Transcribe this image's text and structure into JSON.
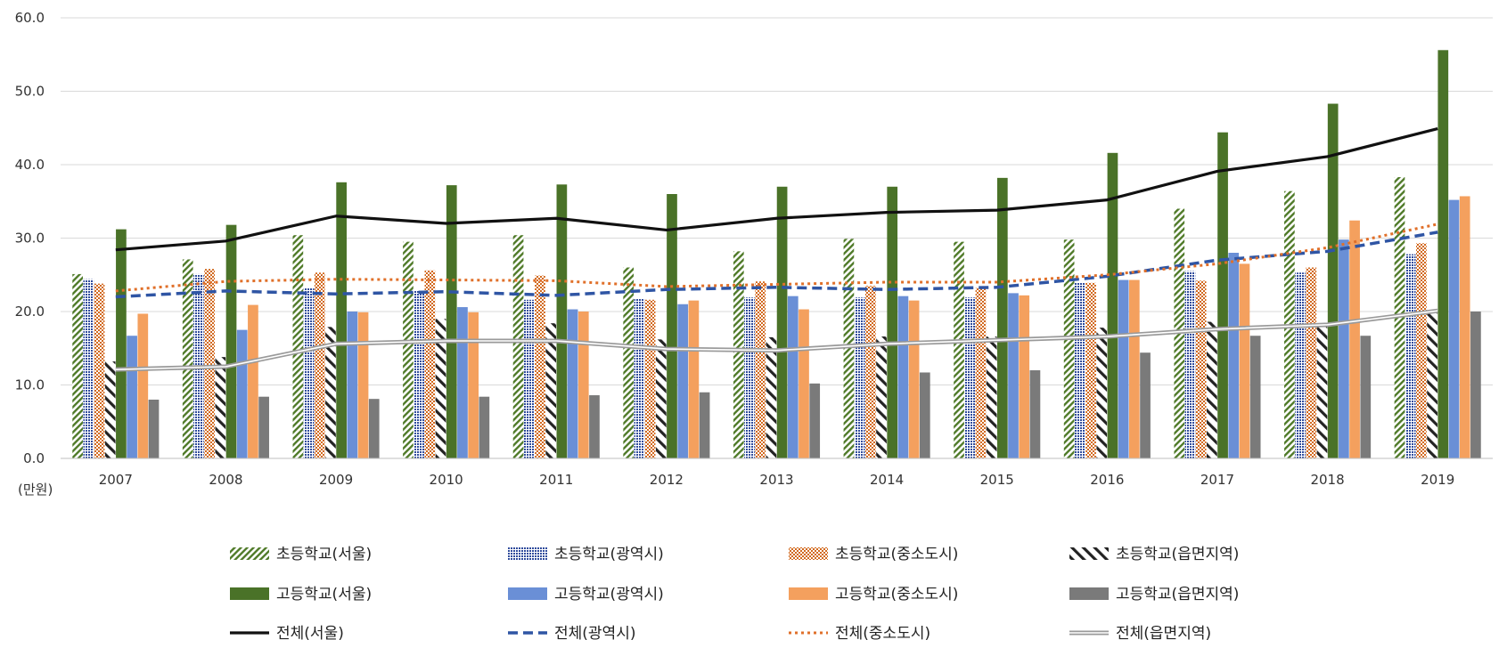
{
  "chart_data": {
    "type": "bar",
    "title": "",
    "xlabel": "",
    "ylabel": "",
    "unit_label": "(만원)",
    "ylim": [
      0,
      60
    ],
    "yticks": [
      0,
      10,
      20,
      30,
      40,
      50,
      60
    ],
    "ytick_labels": [
      "0.0",
      "10.0",
      "20.0",
      "30.0",
      "40.0",
      "50.0",
      "60.0"
    ],
    "grid": true,
    "legend_position": "bottom",
    "categories": [
      "2007",
      "2008",
      "2009",
      "2010",
      "2011",
      "2012",
      "2013",
      "2014",
      "2015",
      "2016",
      "2017",
      "2018",
      "2019"
    ],
    "bar_series": [
      {
        "name": "초등학교(서울)",
        "style": "diag-green",
        "color": "#4f7a28",
        "values": [
          25.1,
          27.1,
          30.4,
          29.5,
          30.4,
          26.0,
          28.2,
          29.9,
          29.5,
          29.8,
          34.0,
          36.4,
          38.3
        ]
      },
      {
        "name": "초등학교(광역시)",
        "style": "dots-blue",
        "color": "#2f4b9c",
        "values": [
          24.4,
          25.1,
          23.2,
          22.8,
          21.6,
          21.8,
          21.9,
          21.9,
          21.9,
          23.9,
          25.5,
          25.3,
          27.8
        ]
      },
      {
        "name": "초등학교(중소도시)",
        "style": "check-orange",
        "color": "#d2691e",
        "values": [
          23.8,
          25.8,
          25.3,
          25.6,
          24.9,
          21.6,
          24.1,
          23.5,
          23.2,
          23.9,
          24.2,
          26.0,
          29.3
        ]
      },
      {
        "name": "초등학교(읍면지역)",
        "style": "wide-diag-black",
        "color": "#222222",
        "values": [
          13.2,
          13.8,
          17.9,
          19.0,
          18.4,
          16.2,
          16.5,
          16.6,
          16.6,
          17.8,
          18.6,
          18.1,
          19.8
        ]
      },
      {
        "name": "고등학교(서울)",
        "style": "solid",
        "color": "#4a7228",
        "values": [
          31.2,
          31.8,
          37.6,
          37.2,
          37.3,
          36.0,
          37.0,
          37.0,
          38.2,
          41.6,
          44.4,
          48.3,
          55.6
        ]
      },
      {
        "name": "고등학교(광역시)",
        "style": "solid",
        "color": "#6a8fd6",
        "values": [
          16.7,
          17.5,
          20.0,
          20.6,
          20.3,
          21.0,
          22.1,
          22.1,
          22.5,
          24.3,
          28.0,
          29.8,
          35.2
        ]
      },
      {
        "name": "고등학교(중소도시)",
        "style": "solid",
        "color": "#f4a05e",
        "values": [
          19.7,
          20.9,
          19.9,
          19.9,
          20.0,
          21.5,
          20.3,
          21.5,
          22.2,
          24.3,
          26.5,
          32.4,
          35.7
        ]
      },
      {
        "name": "고등학교(읍면지역)",
        "style": "solid",
        "color": "#7a7a7a",
        "values": [
          8.0,
          8.4,
          8.1,
          8.4,
          8.6,
          9.0,
          10.2,
          11.7,
          12.0,
          14.4,
          16.7,
          16.7,
          20.0
        ]
      }
    ],
    "line_series": [
      {
        "name": "전체(서울)",
        "style": "solid-black",
        "color": "#111111",
        "values": [
          28.4,
          29.6,
          33.0,
          32.0,
          32.7,
          31.1,
          32.7,
          33.5,
          33.8,
          35.2,
          39.1,
          41.1,
          44.9
        ]
      },
      {
        "name": "전체(광역시)",
        "style": "dashed-blue",
        "color": "#2f55a4",
        "values": [
          22.0,
          22.8,
          22.4,
          22.7,
          22.2,
          23.0,
          23.3,
          23.0,
          23.3,
          24.8,
          27.0,
          28.2,
          30.8
        ]
      },
      {
        "name": "전체(중소도시)",
        "style": "dotted-orange",
        "color": "#e0702a",
        "values": [
          22.8,
          24.1,
          24.4,
          24.3,
          24.2,
          23.4,
          23.7,
          24.0,
          24.0,
          25.0,
          26.5,
          28.7,
          31.9
        ]
      },
      {
        "name": "전체(읍면지역)",
        "style": "double-gray",
        "color": "#9a9a9a",
        "values": [
          12.1,
          12.5,
          15.6,
          16.0,
          16.0,
          14.9,
          14.7,
          15.6,
          16.1,
          16.6,
          17.6,
          18.2,
          20.1
        ]
      }
    ]
  }
}
